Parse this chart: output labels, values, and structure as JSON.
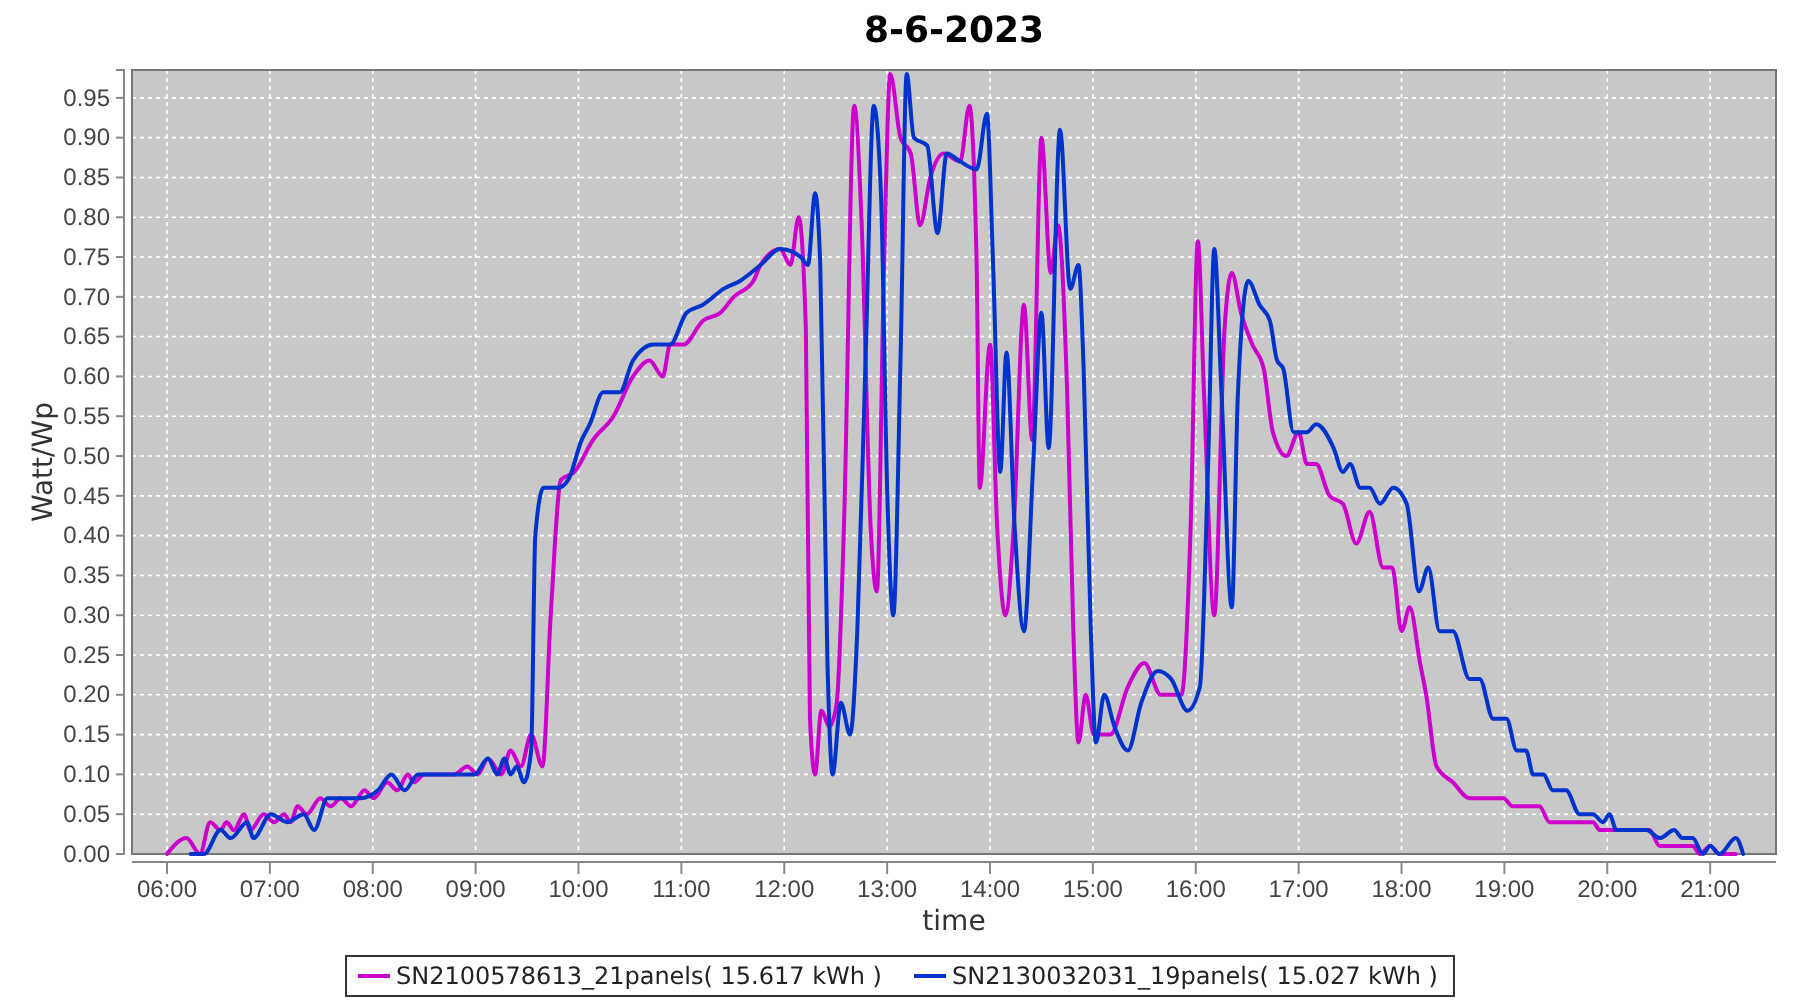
{
  "chart_data": {
    "type": "line",
    "title": "8-6-2023",
    "xlabel": "time",
    "ylabel": "Watt/Wp",
    "grid": true,
    "legend": "bottom",
    "marker": "none",
    "line_style": "solid",
    "xlim": [
      5.66,
      21.64
    ],
    "xticks": [
      {
        "value": 6,
        "label": "06:00"
      },
      {
        "value": 7,
        "label": "07:00"
      },
      {
        "value": 8,
        "label": "08:00"
      },
      {
        "value": 9,
        "label": "09:00"
      },
      {
        "value": 10,
        "label": "10:00"
      },
      {
        "value": 11,
        "label": "11:00"
      },
      {
        "value": 12,
        "label": "12:00"
      },
      {
        "value": 13,
        "label": "13:00"
      },
      {
        "value": 14,
        "label": "14:00"
      },
      {
        "value": 15,
        "label": "15:00"
      },
      {
        "value": 16,
        "label": "16:00"
      },
      {
        "value": 17,
        "label": "17:00"
      },
      {
        "value": 18,
        "label": "18:00"
      },
      {
        "value": 19,
        "label": "19:00"
      },
      {
        "value": 20,
        "label": "20:00"
      },
      {
        "value": 21,
        "label": "21:00"
      }
    ],
    "ylim": [
      0,
      0.985
    ],
    "yticks": [
      {
        "value": 0,
        "label": "0.00"
      },
      {
        "value": 0.05,
        "label": "0.05"
      },
      {
        "value": 0.1,
        "label": "0.10"
      },
      {
        "value": 0.15,
        "label": "0.15"
      },
      {
        "value": 0.2,
        "label": "0.20"
      },
      {
        "value": 0.25,
        "label": "0.25"
      },
      {
        "value": 0.3,
        "label": "0.30"
      },
      {
        "value": 0.35,
        "label": "0.35"
      },
      {
        "value": 0.4,
        "label": "0.40"
      },
      {
        "value": 0.45,
        "label": "0.45"
      },
      {
        "value": 0.5,
        "label": "0.50"
      },
      {
        "value": 0.55,
        "label": "0.55"
      },
      {
        "value": 0.6,
        "label": "0.60"
      },
      {
        "value": 0.65,
        "label": "0.65"
      },
      {
        "value": 0.7,
        "label": "0.70"
      },
      {
        "value": 0.75,
        "label": "0.75"
      },
      {
        "value": 0.8,
        "label": "0.80"
      },
      {
        "value": 0.85,
        "label": "0.85"
      },
      {
        "value": 0.9,
        "label": "0.90"
      },
      {
        "value": 0.95,
        "label": "0.95"
      }
    ],
    "series": [
      {
        "name": "SN2100578613_21panels( 15.617 kWh )",
        "color": "#cc00cc",
        "x": [
          6.0,
          6.19,
          6.32,
          6.42,
          6.52,
          6.58,
          6.65,
          6.75,
          6.81,
          6.94,
          7.04,
          7.14,
          7.2,
          7.27,
          7.36,
          7.49,
          7.59,
          7.69,
          7.79,
          7.92,
          8.01,
          8.14,
          8.24,
          8.34,
          8.4,
          8.5,
          8.79,
          8.92,
          9.02,
          9.12,
          9.25,
          9.34,
          9.44,
          9.54,
          9.65,
          9.73,
          9.83,
          9.96,
          10.14,
          10.34,
          10.53,
          10.69,
          10.82,
          10.89,
          11.02,
          11.21,
          11.38,
          11.51,
          11.7,
          11.77,
          11.96,
          12.06,
          12.14,
          12.21,
          12.25,
          12.3,
          12.36,
          12.44,
          12.51,
          12.58,
          12.68,
          12.75,
          12.84,
          12.9,
          12.97,
          13.03,
          13.13,
          13.23,
          13.32,
          13.42,
          13.55,
          13.71,
          13.8,
          13.87,
          13.9,
          14.0,
          14.07,
          14.15,
          14.23,
          14.33,
          14.41,
          14.5,
          14.59,
          14.66,
          14.75,
          14.81,
          14.86,
          14.93,
          15.01,
          15.17,
          15.34,
          15.5,
          15.66,
          15.86,
          15.95,
          16.02,
          16.08,
          16.18,
          16.28,
          16.35,
          16.44,
          16.55,
          16.66,
          16.75,
          16.88,
          17.0,
          17.08,
          17.17,
          17.3,
          17.43,
          17.56,
          17.69,
          17.82,
          17.91,
          18.0,
          18.08,
          18.18,
          18.24,
          18.34,
          18.5,
          18.66,
          18.99,
          19.08,
          19.34,
          19.44,
          19.86,
          19.93,
          20.41,
          20.51,
          20.83,
          20.9,
          21.0,
          21.09,
          21.25
        ],
        "values": [
          0.0,
          0.02,
          0.0,
          0.04,
          0.03,
          0.04,
          0.03,
          0.05,
          0.03,
          0.05,
          0.04,
          0.05,
          0.04,
          0.06,
          0.05,
          0.07,
          0.06,
          0.07,
          0.06,
          0.08,
          0.07,
          0.09,
          0.08,
          0.1,
          0.09,
          0.1,
          0.1,
          0.11,
          0.1,
          0.12,
          0.1,
          0.13,
          0.11,
          0.15,
          0.11,
          0.3,
          0.47,
          0.48,
          0.52,
          0.55,
          0.6,
          0.62,
          0.6,
          0.64,
          0.64,
          0.67,
          0.68,
          0.7,
          0.72,
          0.74,
          0.76,
          0.74,
          0.8,
          0.66,
          0.17,
          0.1,
          0.18,
          0.16,
          0.19,
          0.41,
          0.94,
          0.8,
          0.41,
          0.33,
          0.74,
          0.98,
          0.9,
          0.88,
          0.79,
          0.85,
          0.88,
          0.87,
          0.94,
          0.74,
          0.46,
          0.64,
          0.41,
          0.3,
          0.41,
          0.69,
          0.52,
          0.9,
          0.73,
          0.79,
          0.58,
          0.28,
          0.14,
          0.2,
          0.15,
          0.15,
          0.21,
          0.24,
          0.2,
          0.2,
          0.41,
          0.77,
          0.58,
          0.3,
          0.66,
          0.73,
          0.68,
          0.64,
          0.61,
          0.53,
          0.5,
          0.53,
          0.49,
          0.49,
          0.45,
          0.44,
          0.39,
          0.43,
          0.36,
          0.36,
          0.28,
          0.31,
          0.24,
          0.2,
          0.11,
          0.09,
          0.07,
          0.07,
          0.06,
          0.06,
          0.04,
          0.04,
          0.03,
          0.03,
          0.01,
          0.01,
          0.0,
          0.01,
          0.0,
          0.0
        ]
      },
      {
        "name": "SN2130032031_19panels( 15.027 kWh )",
        "color": "#0033cc",
        "x": [
          6.23,
          6.36,
          6.52,
          6.62,
          6.78,
          6.84,
          7.01,
          7.17,
          7.33,
          7.43,
          7.56,
          7.69,
          7.88,
          8.05,
          8.18,
          8.31,
          8.44,
          8.99,
          9.12,
          9.21,
          9.28,
          9.34,
          9.4,
          9.47,
          9.54,
          9.58,
          9.66,
          9.8,
          9.9,
          10.03,
          10.11,
          10.24,
          10.4,
          10.53,
          10.73,
          10.89,
          11.05,
          11.21,
          11.41,
          11.57,
          11.77,
          11.96,
          12.16,
          12.23,
          12.3,
          12.35,
          12.42,
          12.47,
          12.55,
          12.64,
          12.71,
          12.79,
          12.87,
          12.94,
          13.0,
          13.06,
          13.13,
          13.19,
          13.26,
          13.39,
          13.49,
          13.58,
          13.71,
          13.87,
          13.97,
          14.03,
          14.1,
          14.16,
          14.24,
          14.33,
          14.42,
          14.5,
          14.57,
          14.68,
          14.78,
          14.86,
          14.91,
          14.98,
          15.03,
          15.11,
          15.21,
          15.34,
          15.47,
          15.63,
          15.76,
          15.92,
          16.04,
          16.12,
          16.18,
          16.25,
          16.35,
          16.41,
          16.51,
          16.62,
          16.72,
          16.79,
          16.85,
          16.95,
          17.08,
          17.17,
          17.34,
          17.43,
          17.5,
          17.6,
          17.69,
          17.79,
          17.92,
          18.05,
          18.17,
          18.26,
          18.37,
          18.5,
          18.66,
          18.76,
          18.89,
          19.02,
          19.12,
          19.21,
          19.28,
          19.38,
          19.47,
          19.6,
          19.73,
          19.86,
          19.96,
          20.02,
          20.09,
          20.38,
          20.51,
          20.65,
          20.73,
          20.83,
          20.93,
          21.0,
          21.09,
          21.25,
          21.32
        ],
        "values": [
          0.0,
          0.0,
          0.03,
          0.02,
          0.04,
          0.02,
          0.05,
          0.04,
          0.05,
          0.03,
          0.07,
          0.07,
          0.07,
          0.08,
          0.1,
          0.08,
          0.1,
          0.1,
          0.12,
          0.1,
          0.12,
          0.1,
          0.11,
          0.09,
          0.13,
          0.4,
          0.46,
          0.46,
          0.47,
          0.52,
          0.54,
          0.58,
          0.58,
          0.62,
          0.64,
          0.64,
          0.68,
          0.69,
          0.71,
          0.72,
          0.74,
          0.76,
          0.75,
          0.74,
          0.83,
          0.74,
          0.24,
          0.1,
          0.19,
          0.15,
          0.28,
          0.62,
          0.94,
          0.83,
          0.46,
          0.3,
          0.62,
          0.98,
          0.9,
          0.89,
          0.78,
          0.88,
          0.87,
          0.86,
          0.93,
          0.74,
          0.48,
          0.63,
          0.41,
          0.28,
          0.49,
          0.68,
          0.51,
          0.91,
          0.71,
          0.74,
          0.61,
          0.28,
          0.14,
          0.2,
          0.16,
          0.13,
          0.19,
          0.23,
          0.22,
          0.18,
          0.21,
          0.49,
          0.76,
          0.58,
          0.31,
          0.58,
          0.72,
          0.69,
          0.67,
          0.62,
          0.61,
          0.53,
          0.53,
          0.54,
          0.51,
          0.48,
          0.49,
          0.46,
          0.46,
          0.44,
          0.46,
          0.44,
          0.33,
          0.36,
          0.28,
          0.28,
          0.22,
          0.22,
          0.17,
          0.17,
          0.13,
          0.13,
          0.1,
          0.1,
          0.08,
          0.08,
          0.05,
          0.05,
          0.04,
          0.05,
          0.03,
          0.03,
          0.02,
          0.03,
          0.02,
          0.02,
          0.0,
          0.01,
          0.0,
          0.02,
          0.0
        ]
      }
    ]
  }
}
